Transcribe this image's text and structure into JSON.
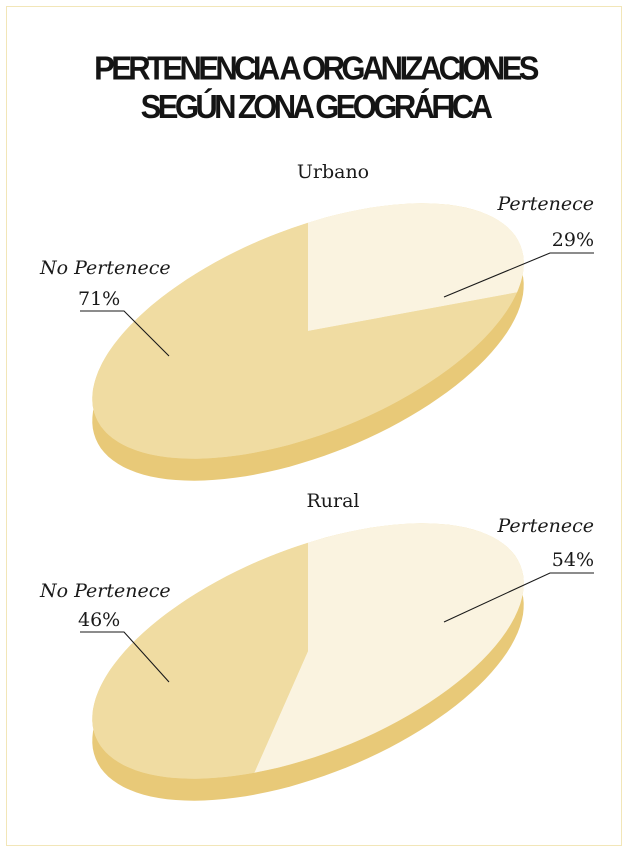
{
  "title": {
    "line1": "PERTENENCIA A ORGANIZACIONES",
    "line2": "SEGÚN ZONA GEOGRÁFICA"
  },
  "colors": {
    "top_dark": "#f0dca2",
    "top_light": "#faf3e0",
    "side": "#e8c978",
    "line": "#1a1a1a",
    "border": "#f2e6b8"
  },
  "chart_data": [
    {
      "type": "pie",
      "title": "Urbano",
      "categories": [
        "No Pertenece",
        "Pertenece"
      ],
      "values": [
        71,
        29
      ],
      "labels": [
        "71%",
        "29%"
      ]
    },
    {
      "type": "pie",
      "title": "Rural",
      "categories": [
        "No Pertenece",
        "Pertenece"
      ],
      "values": [
        46,
        54
      ],
      "labels": [
        "46%",
        "54%"
      ]
    }
  ]
}
